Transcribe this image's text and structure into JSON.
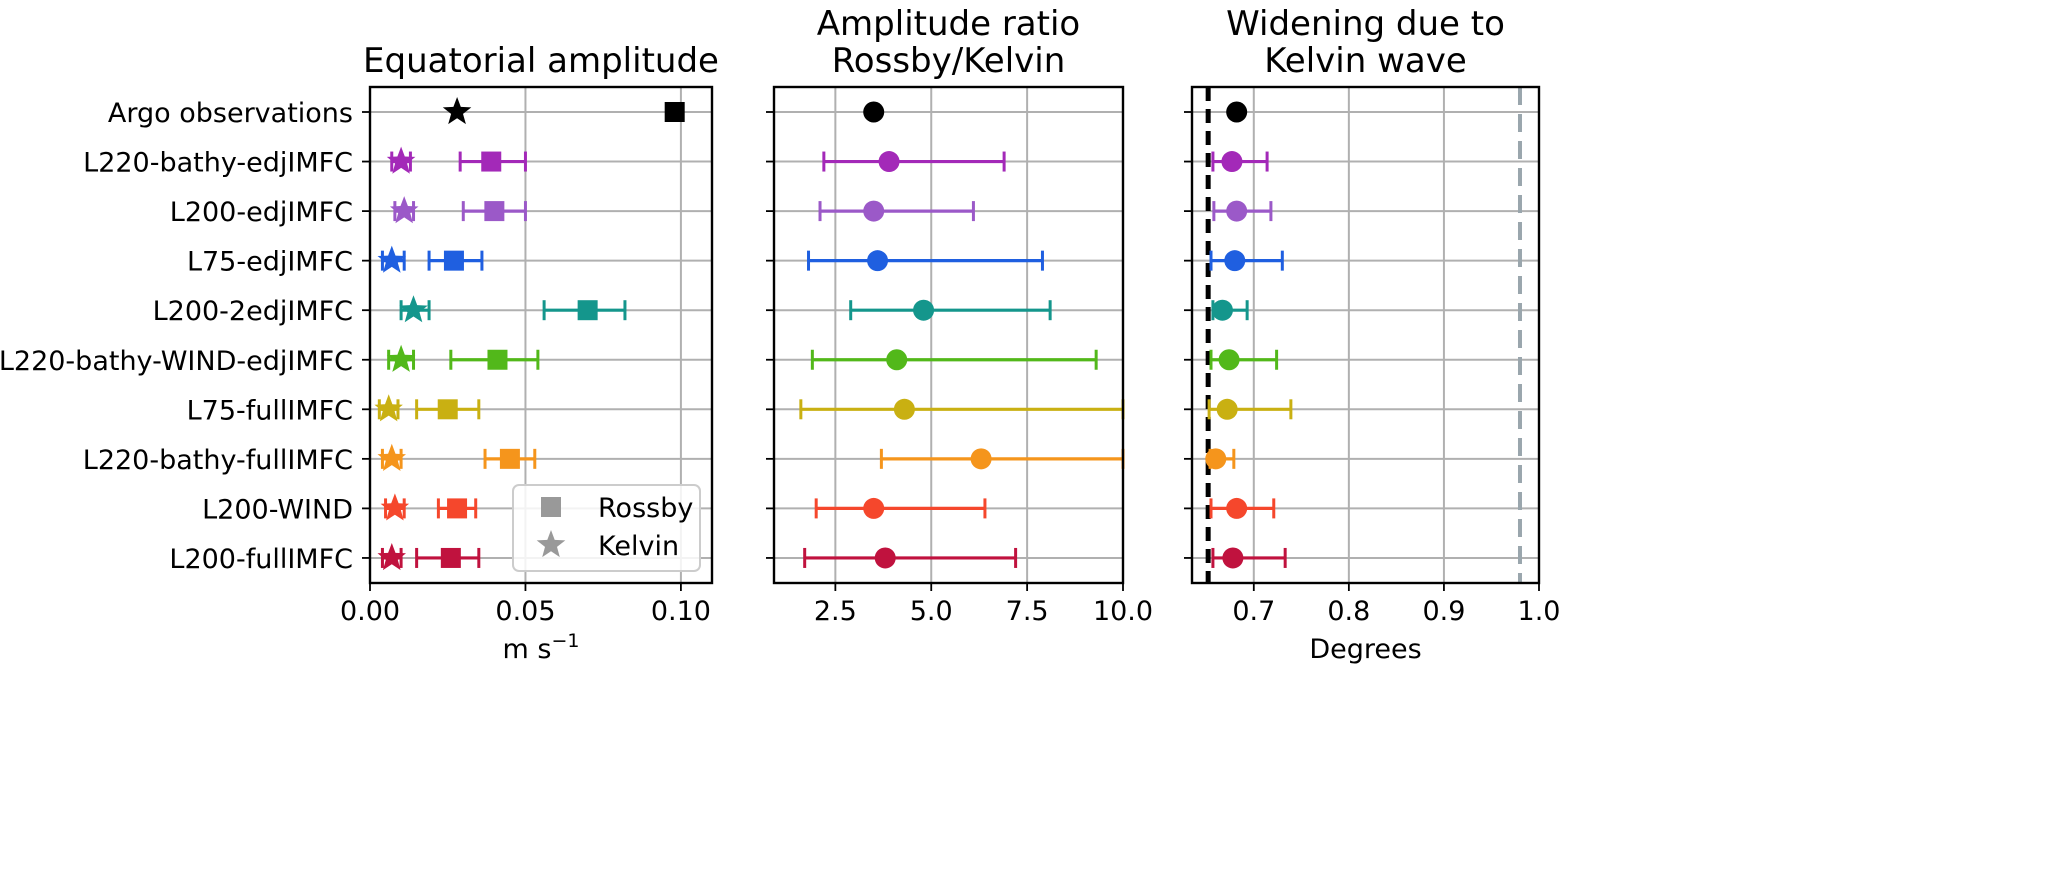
{
  "rows": [
    "Argo observations",
    "L220-bathy-edjIMFC",
    "L200-edjIMFC",
    "L75-edjIMFC",
    "L200-2edjIMFC",
    "L220-bathy-WIND-edjIMFC",
    "L75-fullIMFC",
    "L220-bathy-fullIMFC",
    "L200-WIND",
    "L200-fullIMFC"
  ],
  "colors": [
    "#000000",
    "#a329b8",
    "#9b59c8",
    "#1f5fe0",
    "#14968c",
    "#52b81a",
    "#c9b012",
    "#f5951c",
    "#f5472c",
    "#c0123e"
  ],
  "chart_data": [
    {
      "type": "scatter",
      "title": "Equatorial amplitude",
      "xlabel": "m s",
      "xlabel_sup": "−1",
      "xlim": [
        0,
        0.11
      ],
      "xticks": [
        0.0,
        0.05,
        0.1
      ],
      "xtick_labels": [
        "0.00",
        "0.05",
        "0.10"
      ],
      "grid": true,
      "legend": {
        "position": "lower-right",
        "entries": [
          {
            "label": "Rossby",
            "marker": "square"
          },
          {
            "label": "Kelvin",
            "marker": "star"
          }
        ]
      },
      "series": [
        {
          "name": "Rossby",
          "marker": "square",
          "values": [
            0.098,
            0.039,
            0.04,
            0.027,
            0.07,
            0.041,
            0.025,
            0.045,
            0.028,
            0.026
          ],
          "lo": [
            null,
            0.029,
            0.03,
            0.019,
            0.056,
            0.026,
            0.015,
            0.037,
            0.022,
            0.015
          ],
          "hi": [
            null,
            0.05,
            0.05,
            0.036,
            0.082,
            0.054,
            0.035,
            0.053,
            0.034,
            0.035
          ]
        },
        {
          "name": "Kelvin",
          "marker": "star",
          "values": [
            0.028,
            0.01,
            0.011,
            0.007,
            0.014,
            0.01,
            0.006,
            0.007,
            0.008,
            0.007
          ],
          "lo": [
            null,
            0.007,
            0.008,
            0.004,
            0.01,
            0.006,
            0.003,
            0.004,
            0.005,
            0.004
          ],
          "hi": [
            null,
            0.013,
            0.014,
            0.011,
            0.019,
            0.014,
            0.009,
            0.01,
            0.011,
            0.01
          ]
        }
      ]
    },
    {
      "type": "scatter",
      "title": "Amplitude ratio",
      "subtitle": "Rossby/Kelvin",
      "xlabel": "",
      "xlim": [
        0.9,
        10.0
      ],
      "xticks": [
        2.5,
        5.0,
        7.5,
        10.0
      ],
      "xtick_labels": [
        "2.5",
        "5.0",
        "7.5",
        "10.0"
      ],
      "grid": true,
      "series": [
        {
          "name": "ratio",
          "marker": "circle",
          "values": [
            3.5,
            3.9,
            3.5,
            3.6,
            4.8,
            4.1,
            4.3,
            6.3,
            3.5,
            3.8
          ],
          "lo": [
            null,
            2.2,
            2.1,
            1.8,
            2.9,
            1.9,
            1.6,
            3.7,
            2.0,
            1.7
          ],
          "hi": [
            null,
            6.9,
            6.1,
            7.9,
            8.1,
            9.3,
            10.0,
            10.0,
            6.4,
            7.2
          ]
        }
      ]
    },
    {
      "type": "scatter",
      "title": "Widening due to",
      "subtitle": "Kelvin wave",
      "xlabel": "Degrees",
      "xlim": [
        0.635,
        1.0
      ],
      "xticks": [
        0.7,
        0.8,
        0.9,
        1.0
      ],
      "xtick_labels": [
        "0.7",
        "0.8",
        "0.9",
        "1.0"
      ],
      "grid": true,
      "vlines": [
        {
          "x": 0.652,
          "style": "dashed",
          "color": "#000000"
        },
        {
          "x": 0.98,
          "style": "dashed",
          "color": "#9aa6ad"
        }
      ],
      "series": [
        {
          "name": "widening",
          "marker": "circle",
          "values": [
            0.682,
            0.677,
            0.682,
            0.68,
            0.667,
            0.674,
            0.672,
            0.66,
            0.682,
            0.678
          ],
          "lo": [
            null,
            0.657,
            0.658,
            0.655,
            0.657,
            0.655,
            0.653,
            0.654,
            0.655,
            0.657
          ],
          "hi": [
            null,
            0.714,
            0.718,
            0.73,
            0.693,
            0.724,
            0.739,
            0.679,
            0.721,
            0.733
          ]
        }
      ]
    }
  ]
}
